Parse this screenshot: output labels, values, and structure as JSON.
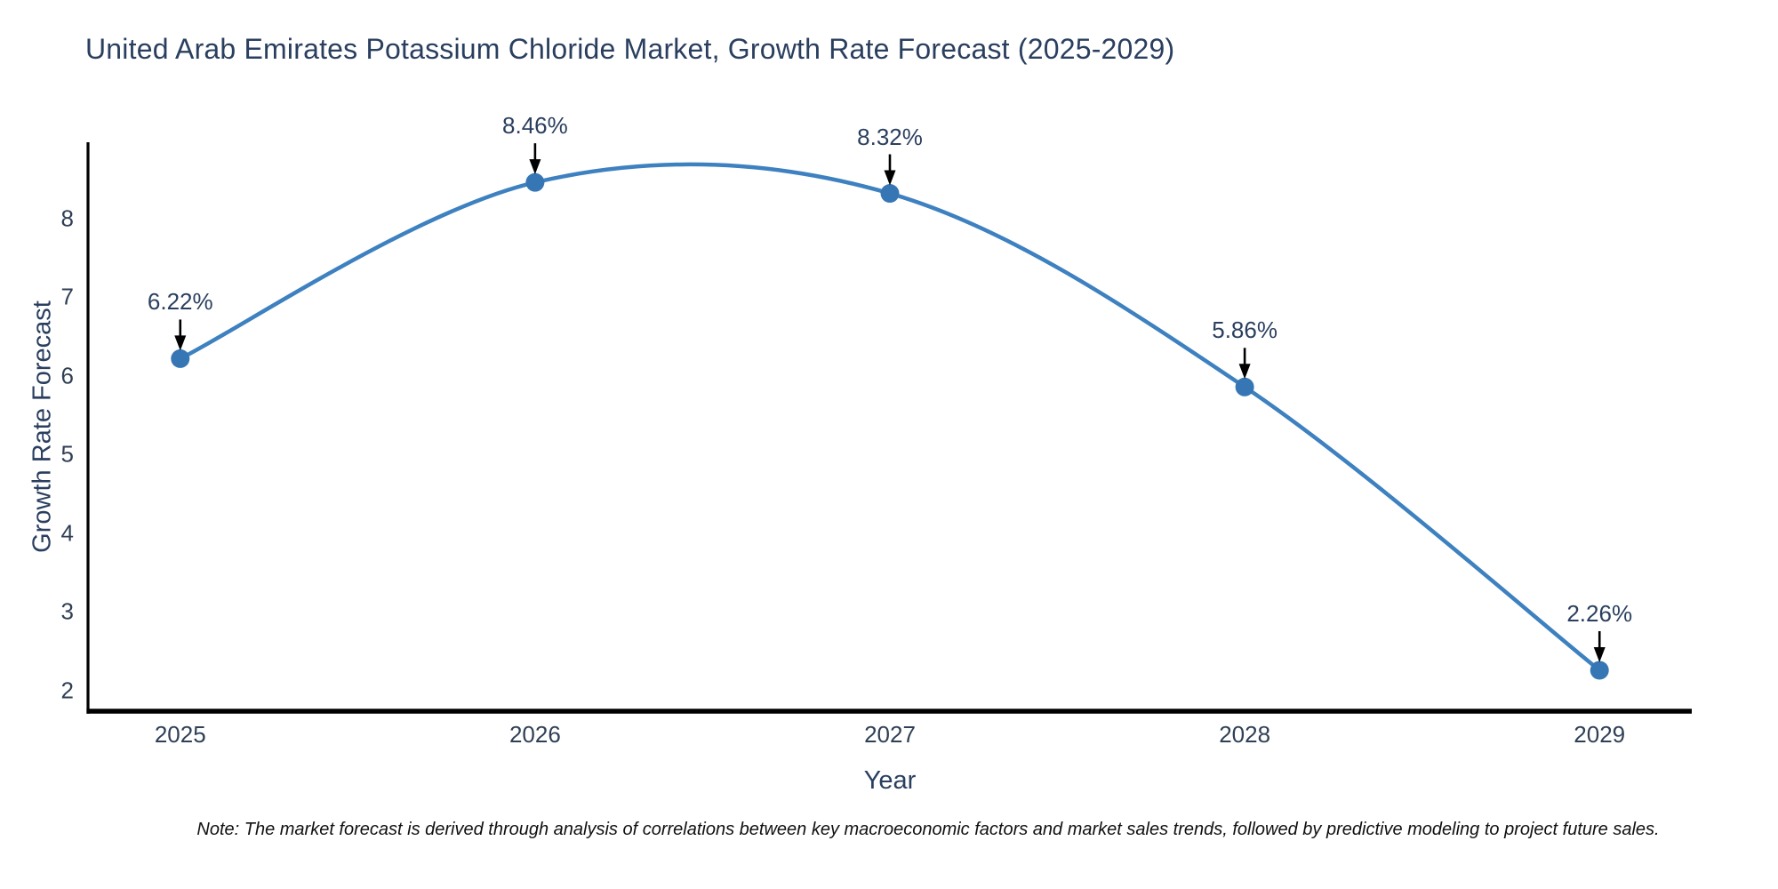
{
  "chart_data": {
    "type": "line",
    "title": "United Arab Emirates Potassium Chloride Market, Growth Rate Forecast (2025-2029)",
    "xlabel": "Year",
    "ylabel": "Growth Rate Forecast",
    "x": [
      2025,
      2026,
      2027,
      2028,
      2029
    ],
    "x_tick_labels": [
      "2025",
      "2026",
      "2027",
      "2028",
      "2029"
    ],
    "values": [
      6.22,
      8.46,
      8.32,
      5.86,
      2.26
    ],
    "point_labels": [
      "6.22%",
      "8.46%",
      "8.32%",
      "5.86%",
      "2.26%"
    ],
    "y_ticks": [
      2,
      3,
      4,
      5,
      6,
      7,
      8
    ],
    "ylim": [
      1.74,
      8.97
    ],
    "xlim": [
      2024.74,
      2029.26
    ],
    "grid": false,
    "legend_position": "none",
    "curve_style": "smooth-spline",
    "line_color": "#3e81c0",
    "marker_color": "#3776b5",
    "axis_color": "#000000",
    "text_color": "#2a3f5f",
    "arrow_color": "#000000"
  },
  "note": "Note: The market forecast is derived through analysis of correlations between key macroeconomic factors and market sales trends, followed by predictive modeling to project future sales."
}
